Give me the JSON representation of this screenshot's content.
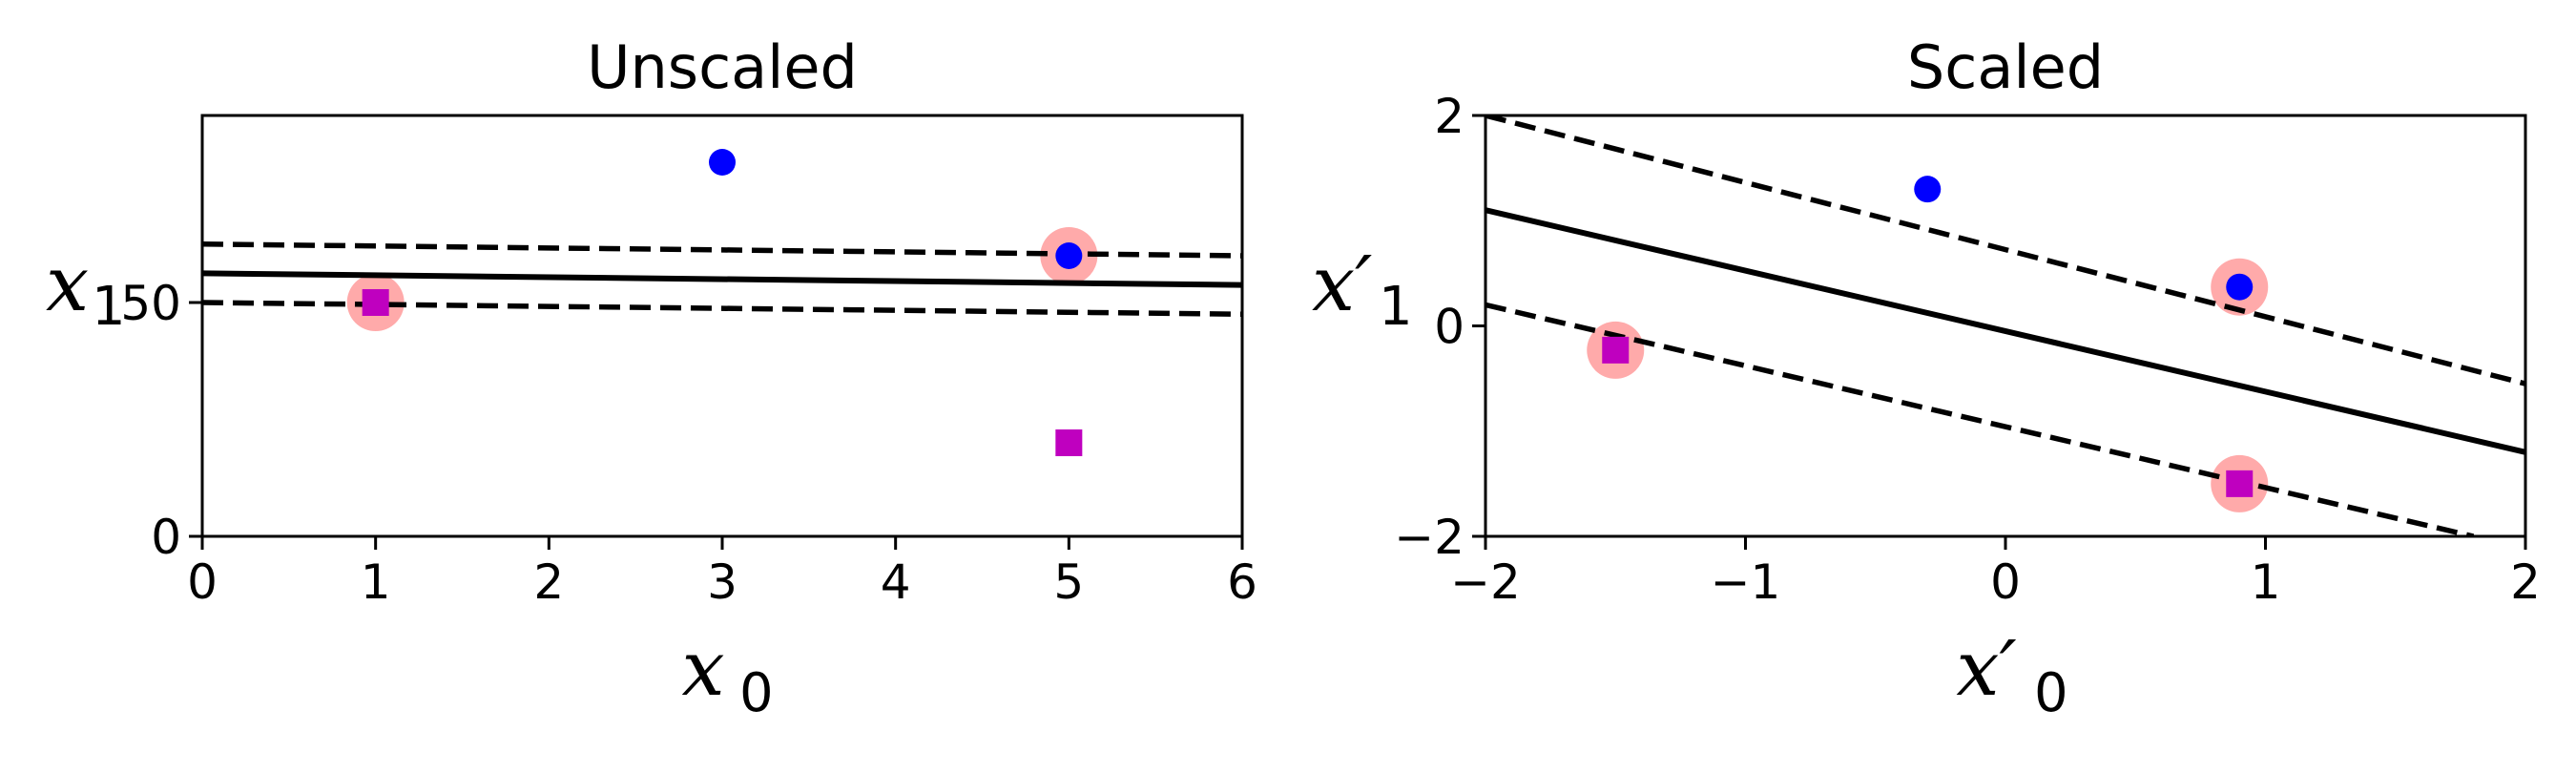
{
  "chart_data": [
    {
      "type": "scatter",
      "title": "Unscaled",
      "xlabel": "x",
      "xlabel_sub": "0",
      "ylabel": "x",
      "ylabel_sub": "1",
      "xlim": [
        0,
        6
      ],
      "ylim": [
        0,
        90
      ],
      "xticks": [
        "0",
        "1",
        "2",
        "3",
        "4",
        "5",
        "6"
      ],
      "yticks": [
        "0",
        "50"
      ],
      "colors": {
        "circle": "#0000ff",
        "square": "#bf00bf",
        "support": "#ffaaaa",
        "line": "#000000"
      },
      "series": [
        {
          "marker": "circle",
          "points": [
            [
              3,
              80
            ],
            [
              5,
              60
            ]
          ]
        },
        {
          "marker": "square",
          "points": [
            [
              1,
              50
            ],
            [
              5,
              20
            ]
          ]
        }
      ],
      "support_vectors": [
        [
          1,
          50
        ],
        [
          5,
          60
        ]
      ],
      "decision_boundary": {
        "x": [
          0,
          6
        ],
        "y": [
          56.25,
          53.75
        ]
      },
      "margins": [
        {
          "x": [
            0,
            6
          ],
          "y": [
            62.5,
            60
          ]
        },
        {
          "x": [
            0,
            6
          ],
          "y": [
            50,
            47.5
          ]
        }
      ]
    },
    {
      "type": "scatter",
      "title": "Scaled",
      "xlabel": "x′",
      "xlabel_sub": "0",
      "ylabel": "x′",
      "ylabel_sub": "1",
      "xlim": [
        -2,
        2
      ],
      "ylim": [
        -2,
        2
      ],
      "xticks": [
        "−2",
        "−1",
        "0",
        "1",
        "2"
      ],
      "yticks": [
        "−2",
        "0",
        "2"
      ],
      "colors": {
        "circle": "#0000ff",
        "square": "#bf00bf",
        "support": "#ffaaaa",
        "line": "#000000"
      },
      "series": [
        {
          "marker": "circle",
          "points": [
            [
              -0.3,
              1.3
            ],
            [
              0.9,
              0.37
            ]
          ]
        },
        {
          "marker": "square",
          "points": [
            [
              -1.5,
              -0.23
            ],
            [
              0.9,
              -1.5
            ]
          ]
        }
      ],
      "support_vectors": [
        [
          -1.5,
          -0.23
        ],
        [
          0.9,
          0.37
        ],
        [
          0.9,
          -1.5
        ]
      ],
      "decision_boundary": {
        "x": [
          -2,
          2
        ],
        "y": [
          1.1,
          -1.2
        ]
      },
      "margins": [
        {
          "x": [
            -2,
            2
          ],
          "y": [
            2.0,
            -0.55
          ]
        },
        {
          "x": [
            -2,
            1.8
          ],
          "y": [
            0.2,
            -2.0
          ]
        }
      ]
    }
  ]
}
